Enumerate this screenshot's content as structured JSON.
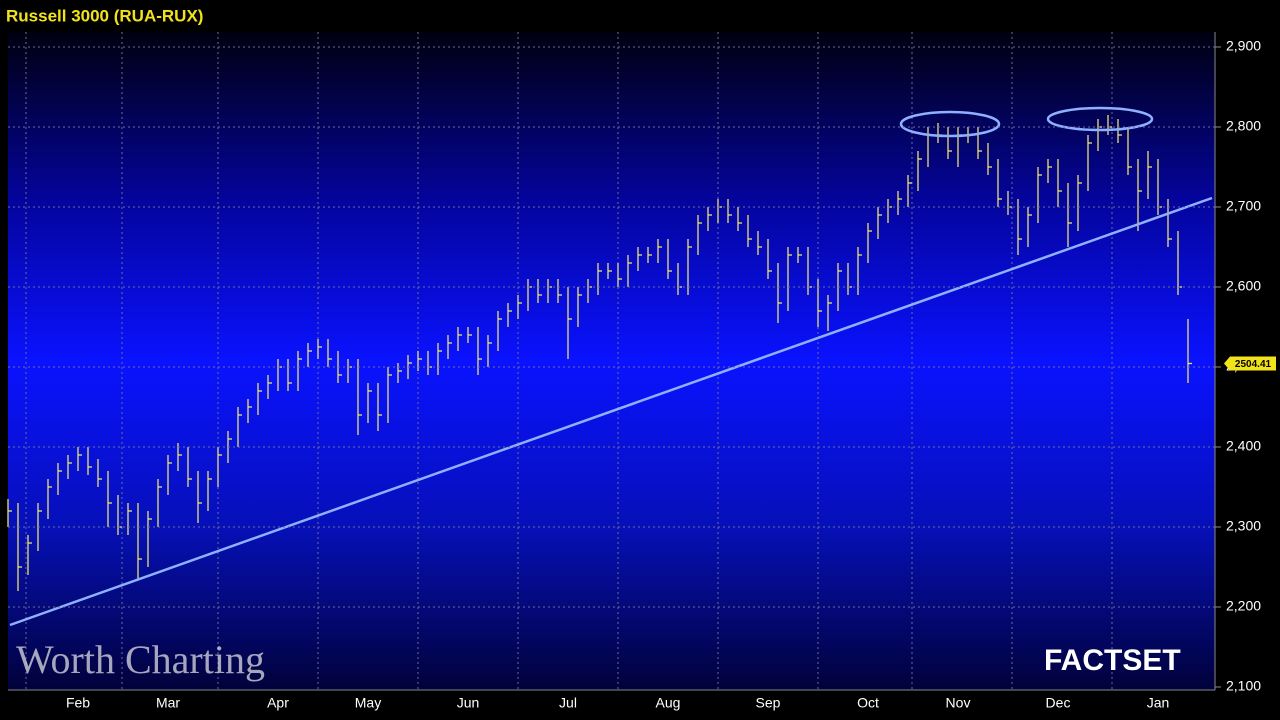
{
  "chart_data": {
    "type": "ohlc",
    "title": "Russell 3000 (RUA-RUX)",
    "color": "#e8e07a",
    "grid": true,
    "ylim": [
      2100,
      2900
    ],
    "yticks": [
      {
        "value": 2100,
        "label": "2,100"
      },
      {
        "value": 2200,
        "label": "2,200"
      },
      {
        "value": 2300,
        "label": "2,300"
      },
      {
        "value": 2400,
        "label": "2,400"
      },
      {
        "value": 2500,
        "label": "2,500"
      },
      {
        "value": 2600,
        "label": "2,600"
      },
      {
        "value": 2700,
        "label": "2,700"
      },
      {
        "value": 2800,
        "label": "2,800"
      },
      {
        "value": 2900,
        "label": "2,900"
      }
    ],
    "categories": [
      null,
      null,
      null,
      null,
      null,
      null,
      null,
      "Feb",
      null,
      null,
      null,
      null,
      null,
      null,
      null,
      null,
      "Mar",
      null,
      null,
      null,
      null,
      null,
      null,
      null,
      null,
      null,
      null,
      "Apr",
      null,
      null,
      null,
      null,
      null,
      null,
      null,
      null,
      "May",
      null,
      null,
      null,
      null,
      null,
      null,
      null,
      null,
      null,
      "Jun",
      null,
      null,
      null,
      null,
      null,
      null,
      null,
      null,
      null,
      "Jul",
      null,
      null,
      null,
      null,
      null,
      null,
      null,
      null,
      null,
      "Aug",
      null,
      null,
      null,
      null,
      null,
      null,
      null,
      null,
      null,
      "Sep",
      null,
      null,
      null,
      null,
      null,
      null,
      null,
      null,
      null,
      "Oct",
      null,
      null,
      null,
      null,
      null,
      null,
      null,
      null,
      "Nov",
      null,
      null,
      null,
      null,
      null,
      null,
      null,
      null,
      null,
      "Dec",
      null,
      null,
      null,
      null,
      null,
      null,
      null,
      null,
      null,
      "Jan",
      null,
      null,
      null
    ],
    "high": [
      2335,
      2330,
      2290,
      2330,
      2360,
      2380,
      2390,
      2400,
      2400,
      2385,
      2370,
      2340,
      2330,
      2330,
      2320,
      2360,
      2390,
      2405,
      2400,
      2370,
      2370,
      2400,
      2420,
      2450,
      2460,
      2480,
      2490,
      2510,
      2510,
      2520,
      2530,
      2535,
      2535,
      2520,
      2510,
      2510,
      2480,
      2480,
      2500,
      2505,
      2515,
      2520,
      2520,
      2530,
      2540,
      2550,
      2550,
      2550,
      2540,
      2570,
      2580,
      2590,
      2610,
      2610,
      2610,
      2610,
      2600,
      2600,
      2610,
      2630,
      2630,
      2630,
      2640,
      2650,
      2650,
      2660,
      2660,
      2630,
      2660,
      2690,
      2700,
      2710,
      2710,
      2700,
      2690,
      2670,
      2660,
      2630,
      2650,
      2650,
      2650,
      2610,
      2590,
      2630,
      2630,
      2650,
      2680,
      2700,
      2710,
      2720,
      2740,
      2770,
      2800,
      2805,
      2800,
      2800,
      2800,
      2800,
      2780,
      2760,
      2720,
      2710,
      2700,
      2750,
      2760,
      2760,
      2730,
      2740,
      2790,
      2810,
      2815,
      2810,
      2800,
      2760,
      2770,
      2760,
      2710,
      2670,
      2560
    ],
    "low": [
      2300,
      2220,
      2240,
      2270,
      2310,
      2340,
      2360,
      2370,
      2365,
      2350,
      2300,
      2290,
      2290,
      2235,
      2250,
      2300,
      2340,
      2370,
      2350,
      2305,
      2320,
      2350,
      2380,
      2400,
      2430,
      2440,
      2460,
      2470,
      2470,
      2470,
      2500,
      2510,
      2500,
      2480,
      2480,
      2415,
      2430,
      2420,
      2430,
      2480,
      2485,
      2495,
      2490,
      2490,
      2510,
      2520,
      2530,
      2490,
      2500,
      2520,
      2550,
      2560,
      2570,
      2580,
      2580,
      2580,
      2510,
      2550,
      2580,
      2590,
      2610,
      2600,
      2600,
      2620,
      2630,
      2630,
      2610,
      2590,
      2590,
      2640,
      2670,
      2680,
      2680,
      2670,
      2650,
      2640,
      2610,
      2555,
      2570,
      2630,
      2590,
      2550,
      2545,
      2570,
      2590,
      2590,
      2630,
      2660,
      2680,
      2690,
      2700,
      2720,
      2750,
      2780,
      2760,
      2750,
      2780,
      2760,
      2740,
      2700,
      2690,
      2640,
      2650,
      2680,
      2730,
      2700,
      2650,
      2670,
      2720,
      2770,
      2790,
      2780,
      2740,
      2670,
      2710,
      2690,
      2650,
      2590,
      2480
    ],
    "close": [
      2320,
      2250,
      2280,
      2320,
      2350,
      2370,
      2380,
      2390,
      2375,
      2360,
      2330,
      2300,
      2320,
      2260,
      2310,
      2350,
      2380,
      2390,
      2360,
      2330,
      2360,
      2390,
      2410,
      2440,
      2450,
      2470,
      2480,
      2500,
      2480,
      2510,
      2520,
      2525,
      2510,
      2490,
      2500,
      2440,
      2470,
      2440,
      2490,
      2495,
      2505,
      2510,
      2500,
      2520,
      2530,
      2540,
      2540,
      2510,
      2530,
      2560,
      2570,
      2580,
      2600,
      2590,
      2600,
      2590,
      2560,
      2590,
      2600,
      2620,
      2620,
      2610,
      2630,
      2640,
      2640,
      2650,
      2620,
      2600,
      2650,
      2680,
      2690,
      2700,
      2690,
      2680,
      2660,
      2650,
      2620,
      2580,
      2640,
      2640,
      2600,
      2570,
      2580,
      2620,
      2600,
      2640,
      2670,
      2690,
      2700,
      2710,
      2730,
      2760,
      2790,
      2790,
      2770,
      2790,
      2790,
      2770,
      2750,
      2710,
      2700,
      2660,
      2690,
      2740,
      2750,
      2720,
      2680,
      2730,
      2780,
      2800,
      2800,
      2790,
      2750,
      2720,
      2750,
      2700,
      2660,
      2600,
      2504.41
    ]
  },
  "branding": {
    "watermark": "Worth Charting",
    "source": "FACTSET"
  }
}
